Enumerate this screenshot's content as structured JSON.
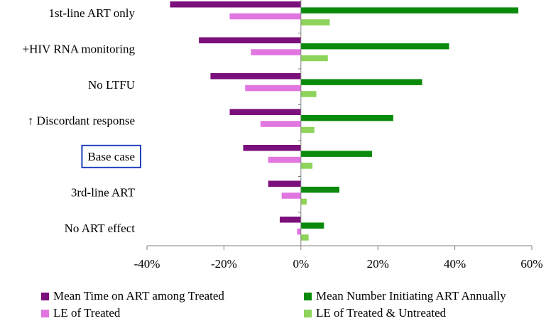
{
  "chart_data": {
    "type": "bar",
    "orientation": "horizontal",
    "categories": [
      "1st-line ART only",
      "+HIV RNA monitoring",
      "No LTFU",
      "↑ Discordant response",
      "Base case",
      "3rd-line ART",
      "No ART effect"
    ],
    "highlighted_category": "Base case",
    "xlim": [
      -40,
      60
    ],
    "xticks": [
      "-40%",
      "-20%",
      "0%",
      "20%",
      "40%",
      "60%"
    ],
    "xtick_values": [
      -40,
      -20,
      0,
      20,
      40,
      60
    ],
    "series": [
      {
        "name": "Mean Time on ART among Treated",
        "color": "#7b0f7b",
        "values": [
          -34,
          -26.5,
          -23.5,
          -18.5,
          -15,
          -8.5,
          -5.5
        ]
      },
      {
        "name": "LE of Treated",
        "color": "#e176e1",
        "values": [
          -18.5,
          -13,
          -14.5,
          -10.5,
          -8.5,
          -5,
          -1
        ]
      },
      {
        "name": "Mean Number Initiating ART Annually",
        "color": "#0a8a0a",
        "values": [
          56.5,
          38.5,
          31.5,
          24,
          18.5,
          10,
          6
        ]
      },
      {
        "name": "LE of Treated & Untreated",
        "color": "#8ed35a",
        "values": [
          7.5,
          7,
          4,
          3.5,
          3,
          1.5,
          2
        ]
      }
    ],
    "legend_position": "bottom",
    "grid": false
  }
}
